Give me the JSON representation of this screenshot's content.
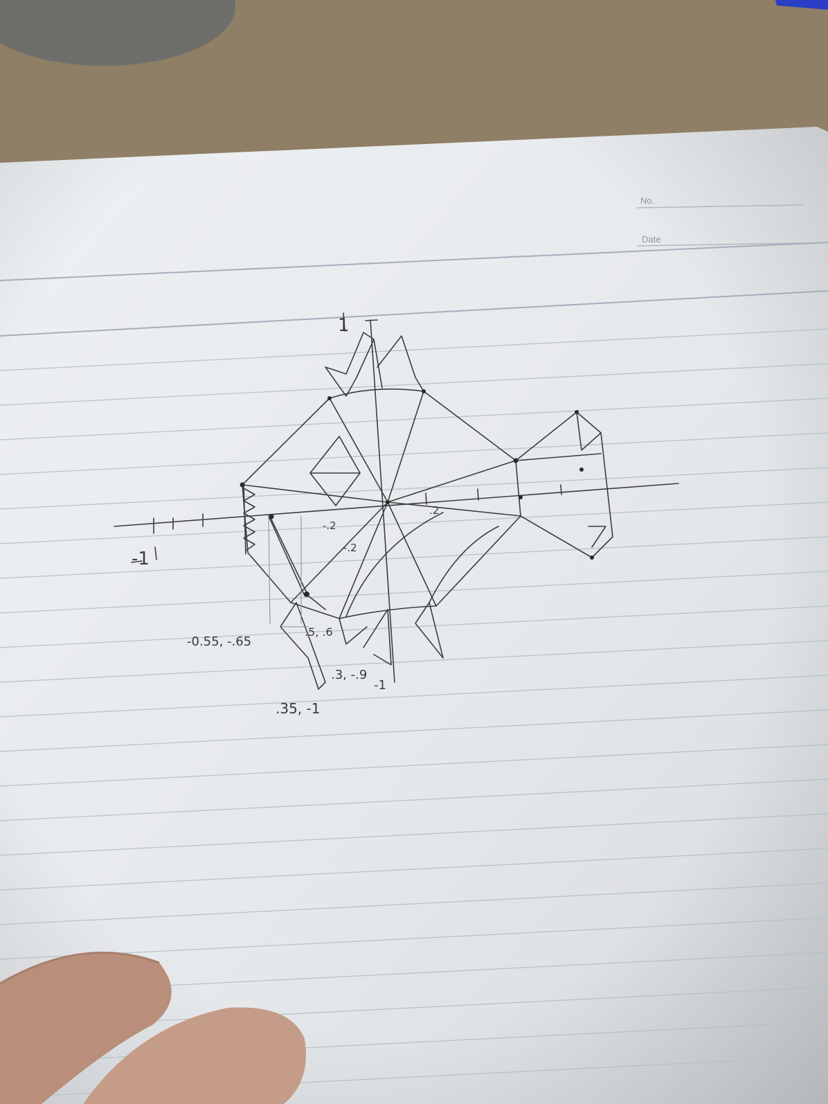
{
  "photo": {
    "subject": "pencil sketch of a fish on a coordinate grid on lined notebook paper",
    "colors": {
      "desk": "#8a7a63",
      "paper": "#e9ecef",
      "pencil": "#3a3a3a",
      "rule": "#aeb8c4",
      "skin": "#c8a28f"
    }
  },
  "notebook_header": {
    "no_label": "No.",
    "date_label": "Date"
  },
  "sketch": {
    "tick_labels": {
      "neg_one_x": "-1",
      "one_y": "1",
      "pt2_x": ".2",
      "neg_pt2_x": "-.2",
      "neg_pt2_y": "-.2"
    },
    "annotations": [
      {
        "id": "a1",
        "text": "-0.55, -.65"
      },
      {
        "id": "a2",
        "text": ".5, .6"
      },
      {
        "id": "a3",
        "text": ".3, -.9"
      },
      {
        "id": "a4",
        "text": "-1"
      },
      {
        "id": "a5",
        "text": ".35, -1"
      }
    ]
  }
}
